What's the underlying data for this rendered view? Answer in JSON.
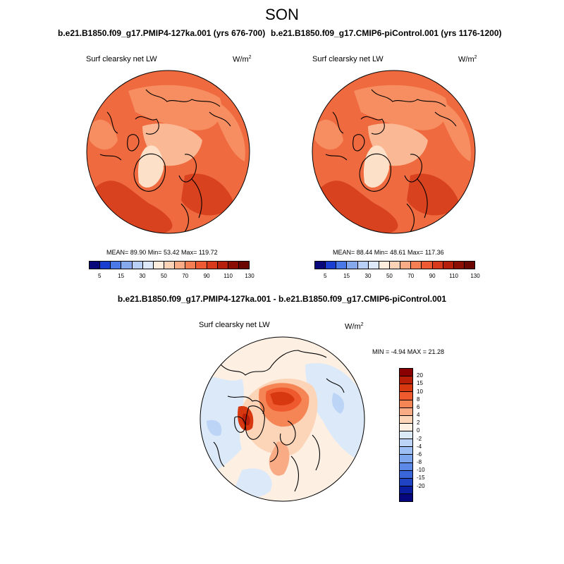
{
  "header": {
    "season": "SON"
  },
  "panels": [
    {
      "case_title": "b.e21.B1850.f09_g17.PMIP4-127ka.001 (yrs 676-700)",
      "field_label": "Surf clearsky net LW",
      "units_base": "W/m",
      "units_exp": "2",
      "mean_text": "MEAN=  89.90  Min=  53.42  Max= 119.72",
      "map_colors": {
        "base": "#ef6a3e",
        "mid": "#f68e61",
        "light": "#fbb895",
        "pale": "#fde0c8",
        "dark": "#d9421f",
        "ocean": "#e5502d"
      }
    },
    {
      "case_title": "b.e21.B1850.f09_g17.CMIP6-piControl.001 (yrs 1176-1200)",
      "field_label": "Surf clearsky net LW",
      "units_base": "W/m",
      "units_exp": "2",
      "mean_text": "MEAN=  88.44  Min=  48.61  Max= 117.36",
      "map_colors": {
        "base": "#ef6a3e",
        "mid": "#f68e61",
        "light": "#fbb895",
        "pale": "#fde0c8",
        "dark": "#d9421f",
        "ocean": "#e5502d"
      }
    }
  ],
  "colorbar_main": {
    "colors": [
      "#08087a",
      "#1a3fd0",
      "#4a78e6",
      "#86a9ee",
      "#b9cff7",
      "#dde9fb",
      "#fdeddd",
      "#fcd3b6",
      "#f9ab85",
      "#f57f55",
      "#ee5a33",
      "#d93a1b",
      "#b51f0b",
      "#8a0e03",
      "#6a0500"
    ],
    "ticks": [
      "5",
      "15",
      "30",
      "50",
      "70",
      "90",
      "110",
      "130"
    ]
  },
  "diff": {
    "title": "b.e21.B1850.f09_g17.PMIP4-127ka.001 - b.e21.B1850.f09_g17.CMIP6-piControl.001",
    "field_label": "Surf clearsky net LW",
    "units_base": "W/m",
    "units_exp": "2",
    "minmax_text": "MIN =  -4.94 MAX =  21.28",
    "colorbar": {
      "colors": [
        "#8a0000",
        "#b81e08",
        "#d8380f",
        "#ee5a2e",
        "#f68556",
        "#f9ab86",
        "#fcd4b8",
        "#fdf0e3",
        "#dce9f8",
        "#bcd4f6",
        "#9ebff3",
        "#7ea6ee",
        "#5c89e7",
        "#3a66d9",
        "#1f43c3",
        "#0c1ea0",
        "#06077e"
      ],
      "ticks": [
        "20",
        "15",
        "10",
        "8",
        "6",
        "4",
        "2",
        "0",
        "-2",
        "-4",
        "-6",
        "-8",
        "-10",
        "-15",
        "-20"
      ]
    }
  }
}
